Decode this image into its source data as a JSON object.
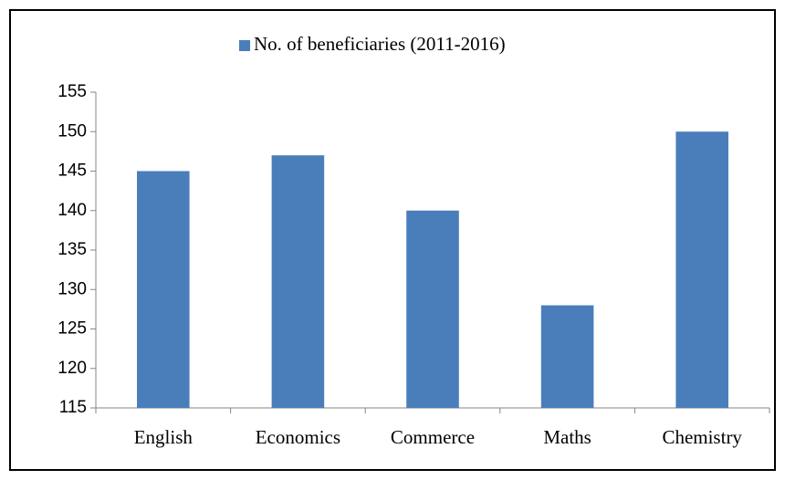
{
  "chart_data": {
    "type": "bar",
    "categories": [
      "English",
      "Economics",
      "Commerce",
      "Maths",
      "Chemistry"
    ],
    "series": [
      {
        "name": "No. of beneficiaries (2011-2016)",
        "color": "#4a7ebb",
        "values": [
          145,
          147,
          140,
          128,
          150
        ]
      }
    ],
    "ylim": [
      115,
      155
    ],
    "yticks": [
      115,
      120,
      125,
      130,
      135,
      140,
      145,
      150,
      155
    ],
    "grid": false,
    "legend": "top"
  }
}
